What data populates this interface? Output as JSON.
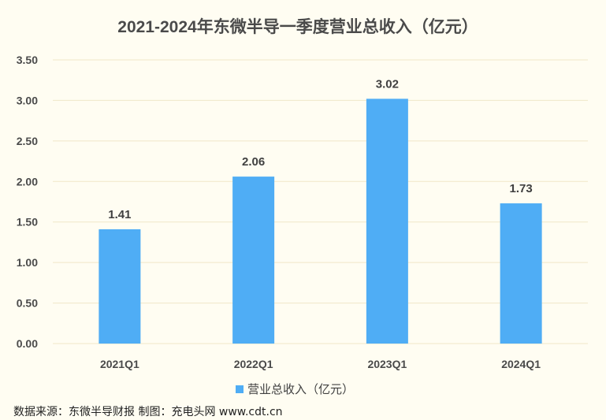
{
  "chart_data": {
    "type": "bar",
    "title": "2021-2024年东微半导一季度营业总收入（亿元）",
    "categories": [
      "2021Q1",
      "2022Q1",
      "2023Q1",
      "2024Q1"
    ],
    "series": [
      {
        "name": "营业总收入（亿元）",
        "values": [
          1.41,
          2.06,
          3.02,
          1.73
        ]
      }
    ],
    "data_labels": [
      "1.41",
      "2.06",
      "3.02",
      "1.73"
    ],
    "y_ticks": [
      "0.00",
      "0.50",
      "1.00",
      "1.50",
      "2.00",
      "2.50",
      "3.00",
      "3.50"
    ],
    "ylim": [
      0,
      3.5
    ],
    "grid": true,
    "legend_position": "bottom",
    "bar_color": "#4fadf5",
    "background_color": "#fffdf2"
  },
  "footer": {
    "source": "数据来源：东微半导财报  制图：充电头网 www.cdt.cn"
  }
}
